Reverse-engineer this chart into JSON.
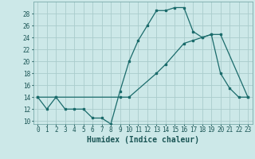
{
  "xlabel": "Humidex (Indice chaleur)",
  "background_color": "#cce8e8",
  "grid_color": "#aacccc",
  "line_color": "#1a6b6b",
  "xlim": [
    -0.5,
    23.5
  ],
  "ylim": [
    9.5,
    30
  ],
  "xticks": [
    0,
    1,
    2,
    3,
    4,
    5,
    6,
    7,
    8,
    9,
    10,
    11,
    12,
    13,
    14,
    15,
    16,
    17,
    18,
    19,
    20,
    21,
    22,
    23
  ],
  "yticks": [
    10,
    12,
    14,
    16,
    18,
    20,
    22,
    24,
    26,
    28
  ],
  "curve1_x": [
    0,
    1,
    2,
    3,
    4,
    5,
    6,
    7,
    8,
    9,
    10,
    11,
    12,
    13,
    14,
    15,
    16,
    17,
    18,
    19,
    20,
    21,
    22,
    23
  ],
  "curve1_y": [
    14,
    12,
    14,
    12,
    12,
    12,
    10.5,
    10.5,
    9.5,
    15,
    20,
    23.5,
    26,
    28.5,
    28.5,
    29,
    29,
    25,
    24,
    24.5,
    18,
    15.5,
    14,
    14
  ],
  "curve2_x": [
    0,
    2,
    9,
    10,
    13,
    14,
    16,
    17,
    18,
    19,
    20,
    23
  ],
  "curve2_y": [
    14,
    14,
    14,
    14,
    18,
    19.5,
    23,
    23.5,
    24,
    24.5,
    24.5,
    14
  ],
  "xlabel_fontsize": 7,
  "tick_fontsize": 5.5
}
